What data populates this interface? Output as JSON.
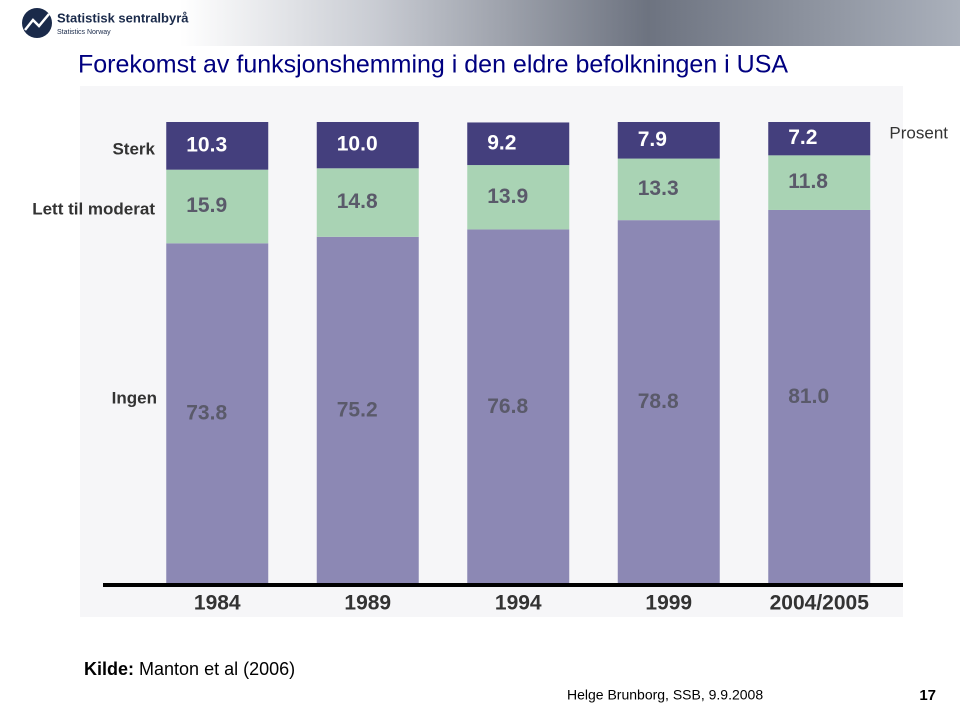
{
  "logo": {
    "name": "Statistisk sentralbyrå",
    "subname": "Statistics Norway"
  },
  "chart_data": {
    "type": "stacked_bar",
    "title": "Forekomst av funksjonshemming i den eldre befolkningen i USA",
    "y_label": "Prosent",
    "categories": [
      "1984",
      "1989",
      "1994",
      "1999",
      "2004/2005"
    ],
    "ylim": [
      0,
      100
    ],
    "series": [
      {
        "name": "Ingen",
        "color": "#8c88b4",
        "label_color": "#5a5a6a",
        "values": [
          73.8,
          75.2,
          76.8,
          78.8,
          81
        ],
        "value_labels": [
          "73.8",
          "75.2",
          "76.8",
          "78.8",
          "81.0"
        ]
      },
      {
        "name": "Lett til moderat",
        "color": "#a9d3b4",
        "label_color": "#5a5a6a",
        "values": [
          15.9,
          14.8,
          13.9,
          13.3,
          11.8
        ],
        "value_labels": [
          "15.9",
          "14.8",
          "13.9",
          "13.3",
          "11.8"
        ]
      },
      {
        "name": "Sterk",
        "color": "#443f7d",
        "label_color": "#ffffff",
        "values": [
          10.3,
          10,
          9.2,
          7.9,
          7.2
        ],
        "value_labels": [
          "10.3",
          "10.0",
          "9.2",
          "7.9",
          "7.2"
        ]
      }
    ]
  },
  "source": {
    "label": "Kilde:",
    "text": "Manton et al (2006)"
  },
  "footer": {
    "author": "Helge Brunborg, SSB, 9.9.2008",
    "page": "17"
  }
}
